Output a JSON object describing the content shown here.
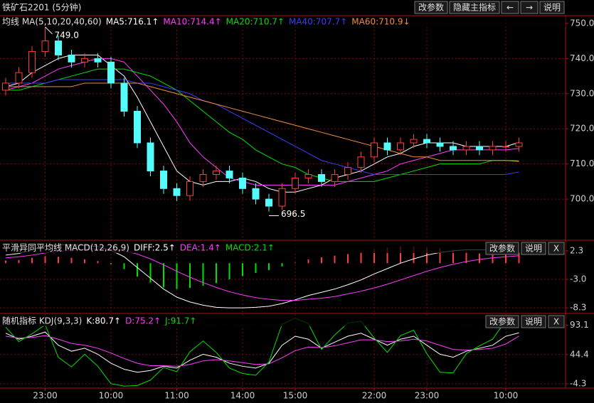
{
  "header": {
    "title": "铁矿石2201 (5分钟)",
    "buttons": [
      "改参数",
      "隐藏主指标",
      "←",
      "→",
      "说明"
    ]
  },
  "chart_data": [
    {
      "type": "candlestick",
      "label": "均线 MA(5,10,20,40,60)",
      "up_color": "#ff3c3c",
      "down_color": "#54fcfc",
      "open": [
        731,
        733,
        736,
        742,
        745,
        741,
        739,
        740,
        739,
        733,
        725,
        716,
        708,
        703,
        701,
        705,
        707,
        708,
        706,
        703,
        700,
        698,
        703,
        706,
        707,
        705,
        707,
        709,
        712,
        716,
        714,
        716,
        717,
        716,
        715,
        714,
        715,
        714,
        715,
        715
      ],
      "close": [
        733,
        736,
        742,
        745,
        741,
        739,
        740,
        739,
        733,
        725,
        716,
        708,
        703,
        701,
        705,
        707,
        708,
        706,
        703,
        700,
        698,
        703,
        706,
        707,
        705,
        707,
        709,
        712,
        716,
        714,
        716,
        717,
        716,
        715,
        714,
        715,
        714,
        715,
        715,
        716
      ],
      "high": [
        734.5,
        737.5,
        743.5,
        749,
        746.5,
        742.5,
        741.5,
        741.5,
        740.5,
        734.5,
        726.5,
        717.5,
        709.5,
        704.5,
        706.5,
        708.5,
        709.5,
        709.5,
        707.5,
        704.5,
        701.5,
        704.5,
        707.5,
        708.5,
        708.5,
        708.5,
        710.5,
        713.5,
        717.5,
        717.5,
        717.5,
        718.5,
        718.5,
        717.5,
        716.5,
        716.5,
        716.5,
        716.5,
        716.5,
        717.5
      ],
      "low": [
        729.5,
        731.5,
        734.5,
        740.5,
        739.5,
        737.5,
        737.5,
        737.5,
        731.5,
        723.5,
        714.5,
        706.5,
        701.5,
        699.5,
        699.5,
        703.5,
        705.5,
        704.5,
        701.5,
        698.5,
        696.5,
        697,
        701.5,
        704.5,
        703.5,
        703.5,
        705.5,
        707.5,
        710.5,
        712.5,
        712.5,
        714.5,
        714.5,
        713.5,
        712.5,
        712.5,
        712.5,
        712.5,
        713.5,
        713.5
      ],
      "series": [
        {
          "name": "MA5:716.1↑",
          "color": "#ffffff",
          "values": [
            732,
            733,
            736,
            738,
            740,
            741,
            741,
            741,
            738,
            735,
            729,
            722,
            715,
            708,
            705,
            704,
            705,
            705,
            706,
            705,
            703,
            702,
            702,
            703,
            704,
            706,
            707,
            708,
            710,
            712,
            713,
            715,
            716,
            716,
            716,
            715,
            715,
            715,
            715,
            716.1
          ]
        },
        {
          "name": "MA10:714.4↑",
          "color": "#ff3cff",
          "values": [
            731,
            732,
            733,
            735,
            737,
            738,
            739,
            740,
            740,
            739,
            735,
            731,
            727,
            722,
            716,
            712,
            709,
            706,
            705,
            704,
            704,
            704,
            704,
            704,
            704,
            704,
            705,
            706,
            707,
            708,
            710,
            711,
            712,
            713,
            714,
            714,
            714,
            714,
            714,
            714.4
          ]
        },
        {
          "name": "MA20:710.7↑",
          "color": "#00e000",
          "values": [
            731,
            731,
            732,
            733,
            734,
            735,
            736,
            737,
            737,
            737,
            736,
            735,
            733,
            731,
            728,
            725,
            722,
            719,
            717,
            714,
            712,
            710,
            709,
            707,
            706,
            705,
            705,
            705,
            705,
            706,
            707,
            708,
            709,
            710,
            710,
            710,
            710,
            711,
            711,
            710.7
          ]
        },
        {
          "name": "MA40:707.7↑",
          "color": "#3c3cff",
          "values": [
            733,
            733,
            733,
            733,
            734,
            734,
            734,
            734,
            734,
            734,
            733,
            733,
            732,
            731,
            730,
            728,
            727,
            725,
            723,
            721,
            719,
            717,
            715,
            713,
            711,
            710,
            709,
            708,
            707,
            707,
            707,
            707,
            707,
            707,
            707,
            707,
            707,
            707,
            707,
            707.7
          ]
        },
        {
          "name": "MA60:710.9↓",
          "color": "#f08c3c",
          "values": [
            732,
            732,
            732,
            732,
            732,
            732,
            733,
            733,
            733,
            733,
            733,
            732,
            731,
            730,
            729,
            728,
            727,
            726,
            725,
            724,
            723,
            722,
            721,
            720,
            719,
            718,
            717,
            716,
            715,
            714,
            713,
            712,
            712,
            711,
            711,
            711,
            711,
            711,
            711,
            710.9
          ]
        }
      ],
      "annotations": {
        "high_label": "749.0",
        "low_label": "696.5"
      },
      "ylim": [
        688.5,
        752.2
      ],
      "yticks": [
        {
          "value": 700,
          "label": "700.0"
        },
        {
          "value": 710,
          "label": "710.0"
        },
        {
          "value": 720,
          "label": "720.0"
        },
        {
          "value": 730,
          "label": "730.0"
        },
        {
          "value": 740,
          "label": "740.0"
        },
        {
          "value": 750,
          "label": "750.0"
        }
      ],
      "grid": true
    },
    {
      "type": "macd",
      "label": "平滑异同平均线 MACD(12,26,9)",
      "buttons": [
        "改参数",
        "说明",
        "X"
      ],
      "series": [
        {
          "name": "DIFF:2.5↑",
          "color": "#ffffff",
          "values": [
            1.5,
            1.8,
            2.5,
            3.2,
            3.4,
            3.4,
            3.3,
            3.1,
            2.4,
            1.2,
            -0.8,
            -2.8,
            -4.8,
            -6.3,
            -7.2,
            -7.8,
            -8.2,
            -8.3,
            -8.3,
            -8.2,
            -8.0,
            -7.5,
            -6.8,
            -6.0,
            -5.4,
            -4.8,
            -4.0,
            -3.1,
            -2.0,
            -1.0,
            0.0,
            0.8,
            1.5,
            2.0,
            2.3,
            2.5,
            2.5,
            2.5,
            2.5,
            2.5
          ]
        },
        {
          "name": "DEA:1.4↑",
          "color": "#ff3cff",
          "values": [
            1.0,
            1.2,
            1.5,
            1.9,
            2.2,
            2.4,
            2.6,
            2.7,
            2.6,
            2.3,
            1.7,
            0.8,
            -0.3,
            -1.5,
            -2.6,
            -3.6,
            -4.5,
            -5.3,
            -5.9,
            -6.4,
            -6.7,
            -6.9,
            -6.9,
            -6.7,
            -6.5,
            -6.2,
            -5.7,
            -5.2,
            -4.6,
            -3.9,
            -3.1,
            -2.3,
            -1.5,
            -0.8,
            -0.2,
            0.3,
            0.7,
            1.0,
            1.2,
            1.4
          ]
        }
      ],
      "histogram": {
        "name": "MACD:2.1↑",
        "color": "#00e000",
        "up_color": "#ff3c3c",
        "down_color": "#00e000",
        "values": [
          0.5,
          0.6,
          1.0,
          1.3,
          1.2,
          1.0,
          0.7,
          0.4,
          -0.2,
          -1.1,
          -2.5,
          -3.6,
          -4.5,
          -4.8,
          -4.6,
          -4.2,
          -3.7,
          -3.0,
          -2.4,
          -1.8,
          -1.3,
          -0.6,
          0.1,
          0.7,
          1.1,
          1.4,
          1.7,
          2.1,
          2.6,
          2.9,
          3.1,
          3.1,
          3.0,
          2.8,
          2.5,
          2.2,
          1.8,
          1.9,
          2.0,
          2.1
        ]
      },
      "ylim": [
        -9.2,
        4.0
      ],
      "yticks": [
        {
          "value": -8.3,
          "label": "-8.3"
        },
        {
          "value": -3,
          "label": "-3.0"
        },
        2.3
      ],
      "grid": true
    },
    {
      "type": "line",
      "label": "随机指标 KDJ(9,3,3)",
      "buttons": [
        "改参数",
        "说明",
        "X"
      ],
      "categories": [
        null,
        null,
        null,
        "23:00",
        null,
        null,
        null,
        null,
        "10:00",
        null,
        null,
        null,
        null,
        "11:00",
        null,
        null,
        null,
        null,
        "14:00",
        null,
        null,
        null,
        "15:00",
        null,
        null,
        null,
        null,
        null,
        "22:00",
        null,
        null,
        null,
        "23:00",
        null,
        null,
        null,
        null,
        null,
        "10:00",
        null
      ],
      "series": [
        {
          "name": "K:80.7↑",
          "color": "#ffffff",
          "values": [
            80,
            70,
            75,
            82,
            60,
            50,
            55,
            45,
            30,
            20,
            15,
            18,
            25,
            22,
            35,
            45,
            40,
            30,
            25,
            22,
            30,
            60,
            75,
            70,
            55,
            65,
            75,
            80,
            70,
            60,
            70,
            75,
            60,
            45,
            40,
            50,
            55,
            60,
            75,
            80.7
          ]
        },
        {
          "name": "D:75.2↑",
          "color": "#ff3cff",
          "values": [
            75,
            72,
            73,
            76,
            70,
            63,
            60,
            55,
            47,
            38,
            30,
            26,
            26,
            25,
            28,
            34,
            36,
            34,
            31,
            28,
            29,
            39,
            51,
            57,
            56,
            59,
            64,
            69,
            69,
            66,
            67,
            70,
            67,
            60,
            53,
            52,
            53,
            55,
            62,
            75.2
          ]
        },
        {
          "name": "J:91.7↑",
          "color": "#00e000",
          "values": [
            90,
            66,
            79,
            94,
            40,
            24,
            45,
            25,
            -4,
            -8,
            -7,
            2,
            23,
            16,
            49,
            67,
            48,
            22,
            13,
            10,
            32,
            95,
            105,
            96,
            53,
            77,
            97,
            100,
            72,
            48,
            76,
            85,
            46,
            15,
            14,
            46,
            59,
            70,
            101,
            91.7
          ]
        }
      ],
      "ylim": [
        -10.1,
        110.5
      ],
      "yticks": [
        -4.3,
        44.4,
        93.1
      ],
      "grid": true
    }
  ]
}
